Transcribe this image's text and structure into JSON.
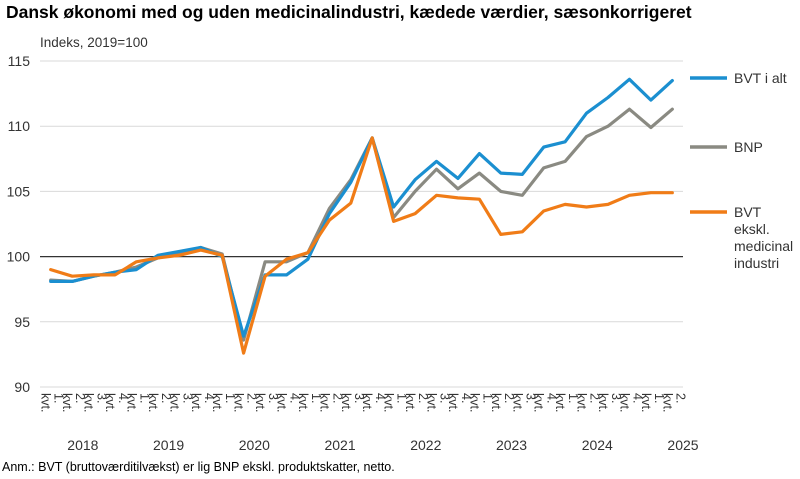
{
  "chart_title": "Dansk økonomi med og uden medicinalindustri, kædede værdier, sæsonkorrigeret",
  "unit_label": "Indeks, 2019=100",
  "note": "Anm.: BVT (bruttoværditilvækst) er lig BNP ekskl. produktskatter, netto.",
  "colors": {
    "bvt_total": "#1b8fd0",
    "bnp": "#8a8a82",
    "bvt_ex_pharma": "#f07c17",
    "reference_line": "#333333",
    "grid": "#d9d9d9"
  },
  "chart_data": {
    "type": "line",
    "title": "Dansk økonomi med og uden medicinalindustri, kædede værdier, sæsonkorrigeret",
    "ylabel": "Indeks, 2019=100",
    "ylim": [
      90,
      115
    ],
    "yticks": [
      90,
      95,
      100,
      105,
      110,
      115
    ],
    "reference_line": 100,
    "grid": "horizontal",
    "legend_position": "right",
    "x": [
      "1. kvt.",
      "2. kvt.",
      "3. kvt.",
      "4. kvt.",
      "1. kvt.",
      "2. kvt.",
      "3. kvt.",
      "4. kvt.",
      "1. kvt.",
      "2. kvt.",
      "3. kvt.",
      "4. kvt.",
      "1. kvt.",
      "2. kvt.",
      "3. kvt.",
      "4. kvt.",
      "1. kvt.",
      "2. kvt.",
      "3. kvt.",
      "4. kvt.",
      "1. kvt.",
      "2. kvt.",
      "3. kvt.",
      "4. kvt.",
      "1. kvt.",
      "2. kvt.",
      "3. kvt.",
      "4. kvt.",
      "1. kvt.",
      "2. kvt."
    ],
    "years": [
      "2018",
      "2019",
      "2020",
      "2021",
      "2022",
      "2023",
      "2024",
      "2025"
    ],
    "series": [
      {
        "key": "bvt_total",
        "legend": [
          "BVT i alt"
        ],
        "values": [
          98.1,
          98.1,
          98.5,
          98.8,
          99.0,
          100.1,
          100.4,
          100.7,
          100.0,
          93.9,
          98.6,
          98.6,
          99.8,
          103.3,
          105.7,
          109.1,
          103.8,
          105.9,
          107.3,
          106.0,
          107.9,
          106.4,
          106.3,
          108.4,
          108.8,
          111.0,
          112.2,
          113.6,
          112.0,
          113.5
        ]
      },
      {
        "key": "bnp",
        "legend": [
          "BNP"
        ],
        "values": [
          98.2,
          98.1,
          98.5,
          98.8,
          99.2,
          99.9,
          100.3,
          100.7,
          100.2,
          93.6,
          99.6,
          99.6,
          100.3,
          103.7,
          105.9,
          109.1,
          103.0,
          105.0,
          106.7,
          105.2,
          106.4,
          105.0,
          104.7,
          106.8,
          107.3,
          109.2,
          110.0,
          111.3,
          109.9,
          111.3
        ]
      },
      {
        "key": "bvt_ex_pharma",
        "legend": [
          "BVT",
          "ekskl.",
          "medicinal",
          "industri"
        ],
        "values": [
          99.0,
          98.5,
          98.6,
          98.6,
          99.6,
          99.9,
          100.1,
          100.5,
          100.1,
          92.6,
          98.5,
          99.8,
          100.3,
          102.8,
          104.1,
          109.1,
          102.7,
          103.3,
          104.7,
          104.5,
          104.4,
          101.7,
          101.9,
          103.5,
          104.0,
          103.8,
          104.0,
          104.7,
          104.9,
          104.9
        ]
      }
    ]
  }
}
